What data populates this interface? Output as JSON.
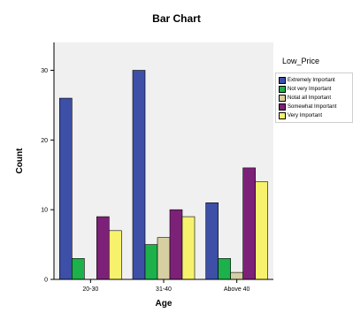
{
  "chart_data": {
    "type": "bar",
    "title": "Bar Chart",
    "xlabel": "Age",
    "ylabel": "Count",
    "categories": [
      "20-30",
      "31-40",
      "Above 40"
    ],
    "ylim": [
      0,
      34
    ],
    "yticks": [
      0,
      10,
      20,
      30
    ],
    "grid": false,
    "legend": {
      "title": "Low_Price",
      "placement": "right"
    },
    "series": [
      {
        "name": "Extremely Important",
        "color": "#3d4fa6",
        "values": [
          26,
          30,
          11
        ]
      },
      {
        "name": "Not very Important",
        "color": "#1cb14a",
        "values": [
          3,
          5,
          3
        ]
      },
      {
        "name": "Notat all Important",
        "color": "#d6cfa1",
        "values": [
          0,
          6,
          1
        ]
      },
      {
        "name": "Somewhat Important",
        "color": "#7d2178",
        "values": [
          9,
          10,
          16
        ]
      },
      {
        "name": "Very Important",
        "color": "#f7f26c",
        "values": [
          7,
          9,
          14
        ]
      }
    ]
  },
  "colors": {
    "plot_background": "#f0f0f0",
    "bar_outline": "#000000"
  }
}
